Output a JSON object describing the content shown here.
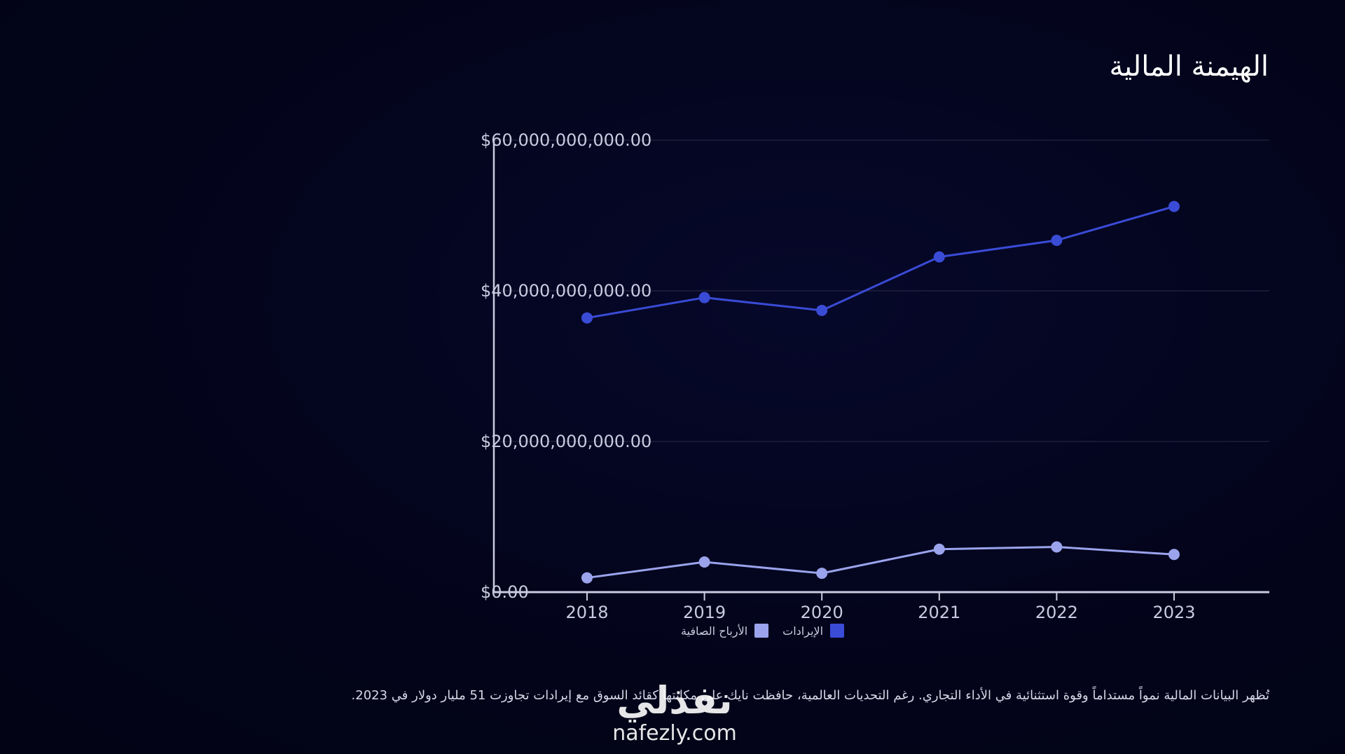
{
  "slide": {
    "title": "الهيمنة المالية",
    "description": "تُظهر البيانات المالية نمواً مستداماً وقوة استثنائية في الأداء التجاري. رغم التحديات العالمية، حافظت نايك على مكانتها كقائد السوق مع إيرادات تجاوزت 51 مليار دولار في 2023."
  },
  "watermark": {
    "logo_text": "نفذلي",
    "domain": "nafezly.com"
  },
  "legend": {
    "items": [
      {
        "label": "الإيرادات",
        "color": "#3a4bd6"
      },
      {
        "label": "الأرباح الصافية",
        "color": "#9aa3ec"
      }
    ]
  },
  "chart_data": {
    "type": "line",
    "title": "",
    "xlabel": "",
    "ylabel": "",
    "categories": [
      "2018",
      "2019",
      "2020",
      "2021",
      "2022",
      "2023"
    ],
    "ylim": [
      0,
      60000000000
    ],
    "yticks": [
      0,
      20000000000,
      40000000000,
      60000000000
    ],
    "ytick_labels": [
      "$0.00",
      "$20,000,000,000.00",
      "$40,000,000,000.00",
      "$60,000,000,000.00"
    ],
    "grid": true,
    "legend_position": "bottom",
    "series": [
      {
        "name": "الإيرادات",
        "color": "#3a4bd6",
        "values": [
          36400000000,
          39100000000,
          37400000000,
          44500000000,
          46700000000,
          51200000000
        ]
      },
      {
        "name": "الأرباح الصافية",
        "color": "#9aa3ec",
        "values": [
          1900000000,
          4000000000,
          2500000000,
          5700000000,
          6000000000,
          5000000000
        ]
      }
    ]
  }
}
